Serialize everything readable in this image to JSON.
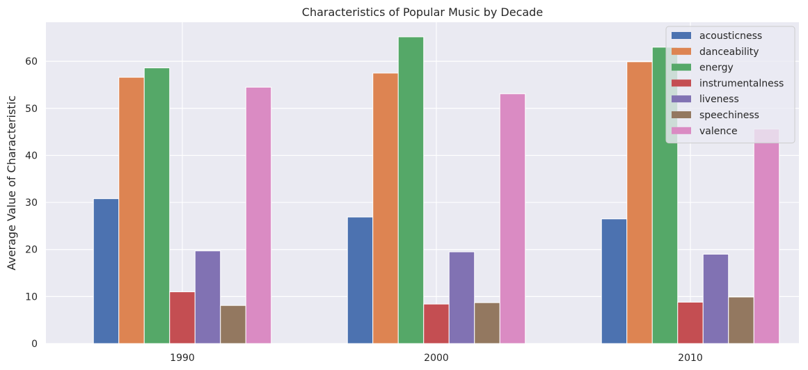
{
  "chart_data": {
    "type": "bar",
    "title": "Characteristics of Popular Music by Decade",
    "xlabel": "",
    "ylabel": "Average Value of Characteristic",
    "categories": [
      "1990",
      "2000",
      "2010"
    ],
    "ylim": [
      0,
      68.3
    ],
    "yticks": [
      0,
      10,
      20,
      30,
      40,
      50,
      60
    ],
    "grid": true,
    "legend_position": "top-right",
    "series": [
      {
        "name": "acousticness",
        "color": "#4c72b0",
        "values": [
          30.8,
          26.9,
          26.5
        ]
      },
      {
        "name": "danceability",
        "color": "#dd8452",
        "values": [
          56.6,
          57.5,
          59.9
        ]
      },
      {
        "name": "energy",
        "color": "#55a868",
        "values": [
          58.6,
          65.2,
          63.0
        ]
      },
      {
        "name": "instrumentalness",
        "color": "#c44e52",
        "values": [
          11.0,
          8.4,
          8.8
        ]
      },
      {
        "name": "liveness",
        "color": "#8172b3",
        "values": [
          19.7,
          19.5,
          19.0
        ]
      },
      {
        "name": "speechiness",
        "color": "#937860",
        "values": [
          8.1,
          8.7,
          9.9
        ]
      },
      {
        "name": "valence",
        "color": "#da8bc3",
        "values": [
          54.5,
          53.1,
          45.6
        ]
      }
    ]
  },
  "colors": {
    "plot_background": "#eaeaf2",
    "grid": "#ffffff",
    "text": "#262626"
  }
}
